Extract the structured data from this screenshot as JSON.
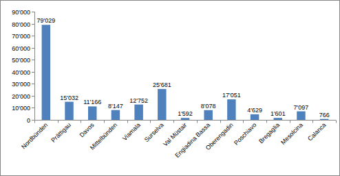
{
  "chart_data": {
    "type": "bar",
    "categories": [
      "Nordbünden",
      "Prättigau",
      "Davos",
      "Mittelbünden",
      "Viamala",
      "Surselva",
      "Val Müstair",
      "Engiadina Bassa",
      "Oberengadin",
      "Poschiavo",
      "Bregaglia",
      "Mesolcina",
      "Calanca"
    ],
    "values": [
      79029,
      15032,
      11166,
      8147,
      12752,
      25681,
      1592,
      8078,
      17051,
      4629,
      1601,
      7097,
      766
    ],
    "value_labels": [
      "79'029",
      "15'032",
      "11'166",
      "8'147",
      "12'752",
      "25'681",
      "1'592",
      "8'078",
      "17'051",
      "4'629",
      "1'601",
      "7'097",
      "766"
    ],
    "color": "#4f81bd",
    "ylim": [
      0,
      90000
    ],
    "yticks": [
      0,
      {
        "value": 10000,
        "label": "10'000"
      },
      {
        "value": 20000,
        "label": "20'000"
      },
      {
        "value": 30000,
        "label": "30'000"
      },
      {
        "value": 40000,
        "label": "40'000"
      },
      {
        "value": 50000,
        "label": "50'000"
      },
      {
        "value": 60000,
        "label": "60'000"
      },
      {
        "value": 70000,
        "label": "70'000"
      },
      {
        "value": 80000,
        "label": "80'000"
      },
      {
        "value": 90000,
        "label": "90'000"
      }
    ],
    "grid": false,
    "data_labels": true
  }
}
